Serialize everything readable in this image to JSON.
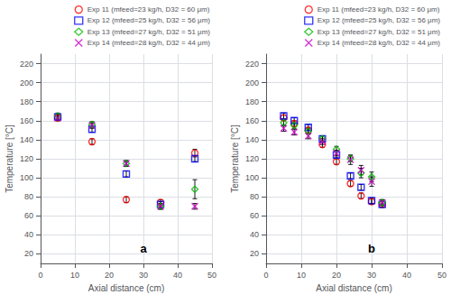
{
  "chart_data": [
    {
      "type": "scatter",
      "annotation": "a",
      "xlabel": "Axial distance (cm)",
      "ylabel": "Temperature [°C]",
      "xlim": [
        0,
        50
      ],
      "ylim": [
        10,
        230
      ],
      "xticks": [
        0,
        10,
        20,
        30,
        40,
        50
      ],
      "yticks": [
        20,
        40,
        60,
        80,
        100,
        120,
        140,
        160,
        180,
        200,
        220
      ],
      "grid": true,
      "legend": "upper right",
      "series": [
        {
          "name": "Exp 11 (mfeed=23 kg/h, D32 = 60 μm)",
          "color": "#ff0000",
          "marker": "circle",
          "x": [
            5,
            15,
            25,
            35,
            45
          ],
          "values": [
            163,
            138,
            77,
            74,
            126
          ],
          "yerr": [
            3,
            3,
            3,
            3,
            4
          ]
        },
        {
          "name": "Exp 12 (mfeed=25 kg/h, D32 = 56 μm)",
          "color": "#0000ff",
          "marker": "square",
          "x": [
            5,
            15,
            25,
            35,
            45
          ],
          "values": [
            164,
            151,
            104,
            72,
            120
          ],
          "yerr": [
            3,
            3,
            3,
            3,
            3
          ]
        },
        {
          "name": "Exp 13 (mfeed=27 kg/h, D32 = 51 μm)",
          "color": "#00bb00",
          "marker": "diamond",
          "x": [
            5,
            15,
            25,
            35,
            45
          ],
          "values": [
            165,
            156,
            115,
            70,
            88
          ],
          "yerr": [
            3,
            3,
            3,
            3,
            10
          ]
        },
        {
          "name": "Exp 14 (mfeed=28 kg/h, D32 = 44 μm)",
          "color": "#cc00cc",
          "marker": "x",
          "x": [
            5,
            15,
            25,
            35,
            45
          ],
          "values": [
            163,
            155,
            115,
            70,
            70
          ],
          "yerr": [
            3,
            3,
            3,
            3,
            3
          ]
        }
      ]
    },
    {
      "type": "scatter",
      "annotation": "b",
      "xlabel": "Axial distance (cm)",
      "ylabel": "Temperature [°C]",
      "xlim": [
        0,
        50
      ],
      "ylim": [
        10,
        230
      ],
      "xticks": [
        0,
        10,
        20,
        30,
        40,
        50
      ],
      "yticks": [
        20,
        40,
        60,
        80,
        100,
        120,
        140,
        160,
        180,
        200,
        220
      ],
      "grid": true,
      "legend": "upper right",
      "series": [
        {
          "name": "Exp 11 (mfeed=23 kg/h, D32 = 60 μm)",
          "color": "#ff0000",
          "marker": "circle",
          "x": [
            5,
            8,
            12,
            16,
            20,
            24,
            27,
            30,
            33
          ],
          "values": [
            163,
            157,
            150,
            135,
            117,
            94,
            81,
            75,
            72
          ],
          "yerr": [
            3,
            3,
            3,
            3,
            3,
            3,
            3,
            3,
            3
          ]
        },
        {
          "name": "Exp 12 (mfeed=25 kg/h, D32 = 56 μm)",
          "color": "#0000ff",
          "marker": "square",
          "x": [
            5,
            8,
            12,
            16,
            20,
            24,
            27,
            30,
            33
          ],
          "values": [
            165,
            160,
            153,
            141,
            124,
            102,
            90,
            76,
            72
          ],
          "yerr": [
            3,
            3,
            3,
            3,
            3,
            3,
            3,
            3,
            3
          ]
        },
        {
          "name": "Exp 13 (mfeed=27 kg/h, D32 = 51 μm)",
          "color": "#00bb00",
          "marker": "diamond",
          "x": [
            5,
            8,
            12,
            16,
            20,
            24,
            27,
            30,
            33
          ],
          "values": [
            158,
            155,
            149,
            141,
            130,
            120,
            105,
            101,
            74
          ],
          "yerr": [
            3,
            3,
            3,
            3,
            3,
            3,
            5,
            5,
            3
          ]
        },
        {
          "name": "Exp 14 (mfeed=28 kg/h, D32 = 44 μm)",
          "color": "#cc00cc",
          "marker": "x",
          "x": [
            5,
            8,
            12,
            16,
            20,
            24,
            27,
            30,
            33
          ],
          "values": [
            152,
            148,
            144,
            138,
            126,
            119,
            108,
            96,
            74
          ],
          "yerr": [
            3,
            3,
            3,
            3,
            3,
            5,
            5,
            5,
            3
          ]
        }
      ]
    }
  ]
}
